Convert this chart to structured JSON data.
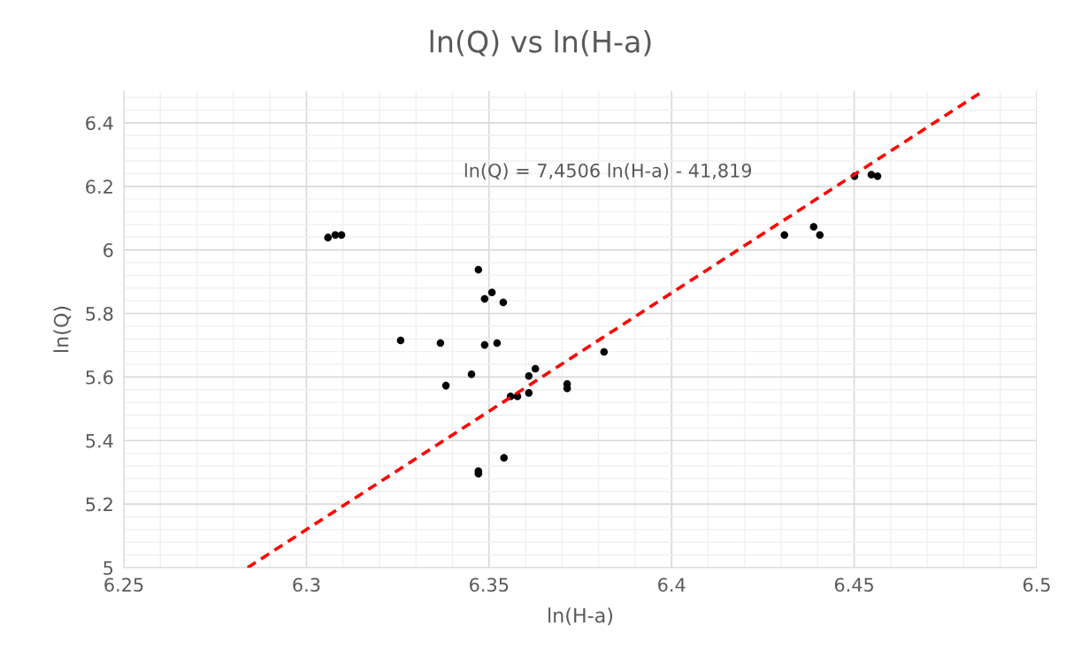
{
  "chart_data": {
    "type": "scatter",
    "title": "ln(Q) vs ln(H-a)",
    "xlabel": "ln(H-a)",
    "ylabel": "ln(Q)",
    "xlim": [
      6.25,
      6.5
    ],
    "xticks": [
      6.25,
      6.3,
      6.35,
      6.4,
      6.45,
      6.5
    ],
    "ylim": [
      5,
      6.5
    ],
    "yticks": [
      5,
      5.2,
      5.4,
      5.6,
      5.8,
      6,
      6.2,
      6.4
    ],
    "grid": true,
    "legend": false,
    "annotations": [
      "ln(Q) = 7,4506 ln(H-a) - 41,819"
    ],
    "series": [
      {
        "color": "#000000",
        "marker": "circle",
        "x": [
          6.3059,
          6.3079,
          6.3096,
          6.3471,
          6.3488,
          6.3508,
          6.3539,
          6.3258,
          6.3367,
          6.3488,
          6.3522,
          6.3452,
          6.3382,
          6.3609,
          6.3627,
          6.3609,
          6.3559,
          6.3578,
          6.3714,
          6.3714,
          6.3815,
          6.3541,
          6.3471,
          6.3471,
          6.4309,
          6.4389,
          6.4406,
          6.4501,
          6.4547,
          6.4564
        ],
        "values": [
          6.039,
          6.047,
          6.047,
          5.938,
          5.846,
          5.866,
          5.835,
          5.715,
          5.707,
          5.701,
          5.707,
          5.609,
          5.573,
          5.603,
          5.626,
          5.55,
          5.539,
          5.539,
          5.578,
          5.564,
          5.679,
          5.346,
          5.304,
          5.296,
          6.047,
          6.073,
          6.047,
          6.232,
          6.237,
          6.232
        ]
      },
      {
        "type": "line",
        "color": "#ff0000",
        "line_style": "dashed",
        "x": [
          6.2839,
          6.4853
        ],
        "values": [
          5,
          6.5
        ]
      }
    ]
  }
}
